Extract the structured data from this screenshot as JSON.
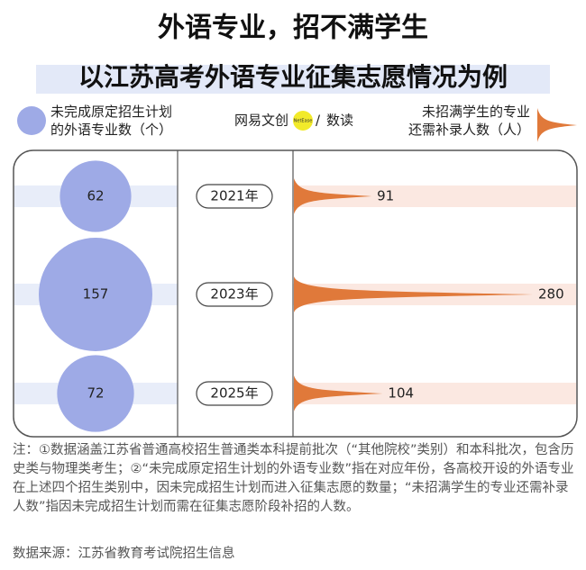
{
  "title": "外语专业，招不满学生",
  "subtitle": "以江苏高考外语专业征集志愿情况为例",
  "logo": {
    "brand": "网易文创",
    "tag": "NetEase",
    "column": "数读"
  },
  "chart_data": {
    "type": "bubble",
    "categories": [
      "2021年",
      "2023年",
      "2025年"
    ],
    "series": [
      {
        "name": "未完成原定招生计划\n的外语专业数（个）",
        "color": "#9eaae6",
        "values": [
          62,
          157,
          72
        ]
      },
      {
        "name": "未招满学生的专业\n还需补录人数（人）",
        "color": "#e0793a",
        "values": [
          91,
          280,
          104
        ]
      }
    ]
  },
  "notes": "注：①数据涵盖江苏省普通高校招生普通类本科提前批次（“其他院校”类别）和本科批次，包含历史类与物理类考生；②“未完成原定招生计划的外语专业数”指在对应年份，各高校开设的外语专业在上述四个招生类别中，因未完成招生计划而进入征集志愿的数量；“未招满学生的专业还需补录人数”指因未完成招生计划而需在征集志愿阶段补招的人数。",
  "source": "数据来源：江苏省教育考试院招生信息"
}
